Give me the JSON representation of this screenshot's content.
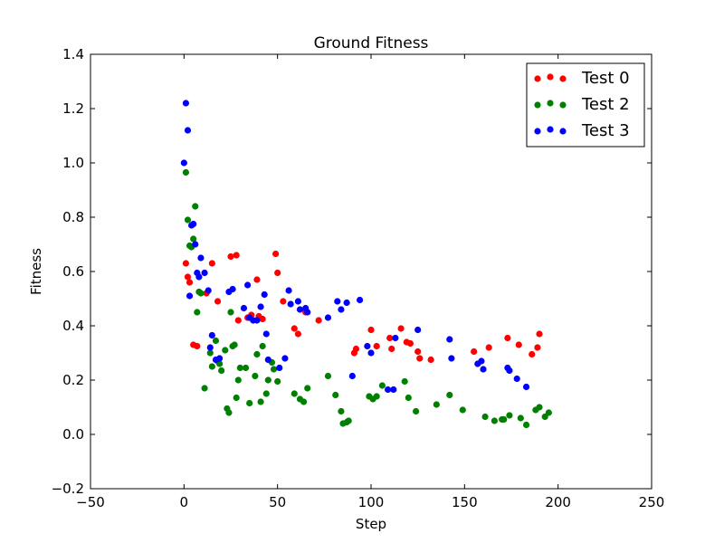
{
  "chart_data": {
    "type": "scatter",
    "title": "Ground Fitness",
    "xlabel": "Step",
    "ylabel": "Fitness",
    "xlim": [
      -50,
      250
    ],
    "ylim": [
      -0.2,
      1.4
    ],
    "xticks": [
      -50,
      0,
      50,
      100,
      150,
      200,
      250
    ],
    "yticks": [
      -0.2,
      0.0,
      0.2,
      0.4,
      0.6,
      0.8,
      1.0,
      1.2,
      1.4
    ],
    "xtick_labels": [
      "−50",
      "0",
      "50",
      "100",
      "150",
      "200",
      "250"
    ],
    "ytick_labels": [
      "−0.2",
      "0.0",
      "0.2",
      "0.4",
      "0.6",
      "0.8",
      "1.0",
      "1.2",
      "1.4"
    ],
    "grid": false,
    "legend_position": "top-right",
    "series": [
      {
        "name": "Test 0",
        "color": "#ff0000",
        "points": [
          [
            1,
            0.63
          ],
          [
            2,
            0.58
          ],
          [
            3,
            0.56
          ],
          [
            5,
            0.33
          ],
          [
            7,
            0.325
          ],
          [
            12,
            0.52
          ],
          [
            15,
            0.63
          ],
          [
            18,
            0.49
          ],
          [
            25,
            0.655
          ],
          [
            28,
            0.66
          ],
          [
            29,
            0.42
          ],
          [
            34,
            0.43
          ],
          [
            36,
            0.44
          ],
          [
            39,
            0.57
          ],
          [
            40,
            0.435
          ],
          [
            42,
            0.425
          ],
          [
            49,
            0.665
          ],
          [
            50,
            0.595
          ],
          [
            53,
            0.49
          ],
          [
            59,
            0.39
          ],
          [
            61,
            0.37
          ],
          [
            65,
            0.45
          ],
          [
            72,
            0.42
          ],
          [
            91,
            0.3
          ],
          [
            92,
            0.315
          ],
          [
            100,
            0.385
          ],
          [
            103,
            0.325
          ],
          [
            110,
            0.355
          ],
          [
            111,
            0.315
          ],
          [
            116,
            0.39
          ],
          [
            119,
            0.34
          ],
          [
            121,
            0.335
          ],
          [
            125,
            0.305
          ],
          [
            126,
            0.28
          ],
          [
            132,
            0.275
          ],
          [
            155,
            0.305
          ],
          [
            163,
            0.32
          ],
          [
            173,
            0.355
          ],
          [
            179,
            0.33
          ],
          [
            186,
            0.295
          ],
          [
            189,
            0.32
          ],
          [
            190,
            0.37
          ]
        ]
      },
      {
        "name": "Test 2",
        "color": "#008000",
        "points": [
          [
            1,
            0.965
          ],
          [
            2,
            0.79
          ],
          [
            3,
            0.695
          ],
          [
            4,
            0.69
          ],
          [
            5,
            0.72
          ],
          [
            6,
            0.84
          ],
          [
            7,
            0.45
          ],
          [
            8,
            0.525
          ],
          [
            9,
            0.52
          ],
          [
            11,
            0.17
          ],
          [
            14,
            0.3
          ],
          [
            15,
            0.25
          ],
          [
            17,
            0.345
          ],
          [
            18,
            0.27
          ],
          [
            19,
            0.26
          ],
          [
            20,
            0.235
          ],
          [
            22,
            0.31
          ],
          [
            23,
            0.095
          ],
          [
            24,
            0.08
          ],
          [
            25,
            0.45
          ],
          [
            26,
            0.325
          ],
          [
            27,
            0.33
          ],
          [
            28,
            0.135
          ],
          [
            29,
            0.2
          ],
          [
            30,
            0.245
          ],
          [
            33,
            0.245
          ],
          [
            35,
            0.115
          ],
          [
            38,
            0.215
          ],
          [
            39,
            0.295
          ],
          [
            41,
            0.12
          ],
          [
            42,
            0.325
          ],
          [
            44,
            0.15
          ],
          [
            45,
            0.2
          ],
          [
            47,
            0.265
          ],
          [
            48,
            0.24
          ],
          [
            50,
            0.195
          ],
          [
            59,
            0.15
          ],
          [
            62,
            0.13
          ],
          [
            64,
            0.12
          ],
          [
            66,
            0.17
          ],
          [
            77,
            0.215
          ],
          [
            81,
            0.145
          ],
          [
            84,
            0.085
          ],
          [
            85,
            0.04
          ],
          [
            87,
            0.045
          ],
          [
            88,
            0.05
          ],
          [
            99,
            0.14
          ],
          [
            101,
            0.13
          ],
          [
            103,
            0.14
          ],
          [
            106,
            0.18
          ],
          [
            118,
            0.195
          ],
          [
            120,
            0.135
          ],
          [
            124,
            0.085
          ],
          [
            135,
            0.11
          ],
          [
            142,
            0.145
          ],
          [
            149,
            0.09
          ],
          [
            161,
            0.065
          ],
          [
            166,
            0.05
          ],
          [
            170,
            0.055
          ],
          [
            171,
            0.055
          ],
          [
            174,
            0.07
          ],
          [
            180,
            0.06
          ],
          [
            183,
            0.035
          ],
          [
            188,
            0.09
          ],
          [
            190,
            0.1
          ],
          [
            193,
            0.065
          ],
          [
            195,
            0.08
          ]
        ]
      },
      {
        "name": "Test 3",
        "color": "#0000ff",
        "points": [
          [
            0,
            1.0
          ],
          [
            1,
            1.22
          ],
          [
            2,
            1.12
          ],
          [
            3,
            0.51
          ],
          [
            4,
            0.77
          ],
          [
            5,
            0.775
          ],
          [
            6,
            0.7
          ],
          [
            7,
            0.595
          ],
          [
            8,
            0.58
          ],
          [
            9,
            0.65
          ],
          [
            11,
            0.595
          ],
          [
            13,
            0.53
          ],
          [
            14,
            0.32
          ],
          [
            15,
            0.365
          ],
          [
            17,
            0.275
          ],
          [
            19,
            0.28
          ],
          [
            24,
            0.525
          ],
          [
            26,
            0.535
          ],
          [
            32,
            0.465
          ],
          [
            34,
            0.55
          ],
          [
            35,
            0.43
          ],
          [
            37,
            0.42
          ],
          [
            39,
            0.42
          ],
          [
            41,
            0.47
          ],
          [
            43,
            0.515
          ],
          [
            44,
            0.37
          ],
          [
            45,
            0.275
          ],
          [
            51,
            0.245
          ],
          [
            54,
            0.28
          ],
          [
            56,
            0.53
          ],
          [
            57,
            0.48
          ],
          [
            61,
            0.49
          ],
          [
            62,
            0.46
          ],
          [
            65,
            0.465
          ],
          [
            66,
            0.45
          ],
          [
            77,
            0.43
          ],
          [
            82,
            0.49
          ],
          [
            84,
            0.46
          ],
          [
            87,
            0.485
          ],
          [
            90,
            0.215
          ],
          [
            94,
            0.495
          ],
          [
            98,
            0.325
          ],
          [
            100,
            0.3
          ],
          [
            109,
            0.165
          ],
          [
            112,
            0.165
          ],
          [
            113,
            0.355
          ],
          [
            125,
            0.385
          ],
          [
            142,
            0.35
          ],
          [
            143,
            0.28
          ],
          [
            157,
            0.26
          ],
          [
            159,
            0.27
          ],
          [
            160,
            0.24
          ],
          [
            173,
            0.245
          ],
          [
            174,
            0.235
          ],
          [
            178,
            0.205
          ],
          [
            183,
            0.175
          ]
        ]
      }
    ]
  }
}
